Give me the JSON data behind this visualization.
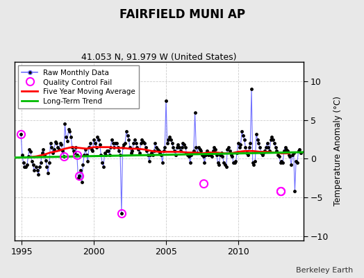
{
  "title": "FAIRFIELD MUNI AP",
  "subtitle": "41.053 N, 91.979 W (United States)",
  "ylabel": "Temperature Anomaly (°C)",
  "attribution": "Berkeley Earth",
  "xlim": [
    1994.5,
    2014.5
  ],
  "ylim": [
    -10.5,
    12.5
  ],
  "yticks": [
    -10,
    -5,
    0,
    5,
    10
  ],
  "xticks": [
    1995,
    2000,
    2005,
    2010
  ],
  "line_color": "#7070ff",
  "dot_color": "#000000",
  "moving_avg_color": "#ff0000",
  "trend_color": "#00bb00",
  "qc_color": "#ff00ff",
  "background_color": "#e8e8e8",
  "plot_bg_color": "#ffffff",
  "raw_times": [
    1994.958,
    1995.042,
    1995.125,
    1995.208,
    1995.292,
    1995.375,
    1995.458,
    1995.542,
    1995.625,
    1995.708,
    1995.792,
    1995.875,
    1996.0,
    1996.083,
    1996.167,
    1996.25,
    1996.333,
    1996.417,
    1996.5,
    1996.583,
    1996.667,
    1996.75,
    1996.833,
    1996.917,
    1997.0,
    1997.083,
    1997.167,
    1997.25,
    1997.333,
    1997.417,
    1997.5,
    1997.583,
    1997.667,
    1997.75,
    1997.833,
    1997.917,
    1998.0,
    1998.083,
    1998.167,
    1998.25,
    1998.333,
    1998.417,
    1998.5,
    1998.583,
    1998.667,
    1998.75,
    1998.833,
    1998.917,
    1999.0,
    1999.083,
    1999.167,
    1999.25,
    1999.333,
    1999.417,
    1999.5,
    1999.583,
    1999.667,
    1999.75,
    1999.833,
    1999.917,
    2000.0,
    2000.083,
    2000.167,
    2000.25,
    2000.333,
    2000.417,
    2000.5,
    2000.583,
    2000.667,
    2000.75,
    2000.833,
    2000.917,
    2001.0,
    2001.083,
    2001.167,
    2001.25,
    2001.333,
    2001.417,
    2001.5,
    2001.583,
    2001.667,
    2001.75,
    2001.833,
    2001.917,
    2002.0,
    2002.083,
    2002.167,
    2002.25,
    2002.333,
    2002.417,
    2002.5,
    2002.583,
    2002.667,
    2002.75,
    2002.833,
    2002.917,
    2003.0,
    2003.083,
    2003.167,
    2003.25,
    2003.333,
    2003.417,
    2003.5,
    2003.583,
    2003.667,
    2003.75,
    2003.833,
    2003.917,
    2004.0,
    2004.083,
    2004.167,
    2004.25,
    2004.333,
    2004.417,
    2004.5,
    2004.583,
    2004.667,
    2004.75,
    2004.833,
    2004.917,
    2005.0,
    2005.083,
    2005.167,
    2005.25,
    2005.333,
    2005.417,
    2005.5,
    2005.583,
    2005.667,
    2005.75,
    2005.833,
    2005.917,
    2006.0,
    2006.083,
    2006.167,
    2006.25,
    2006.333,
    2006.417,
    2006.5,
    2006.583,
    2006.667,
    2006.75,
    2006.833,
    2006.917,
    2007.0,
    2007.083,
    2007.167,
    2007.25,
    2007.333,
    2007.417,
    2007.5,
    2007.583,
    2007.667,
    2007.75,
    2007.833,
    2007.917,
    2008.0,
    2008.083,
    2008.167,
    2008.25,
    2008.333,
    2008.417,
    2008.5,
    2008.583,
    2008.667,
    2008.75,
    2008.833,
    2008.917,
    2009.0,
    2009.083,
    2009.167,
    2009.25,
    2009.333,
    2009.417,
    2009.5,
    2009.583,
    2009.667,
    2009.75,
    2009.833,
    2009.917,
    2010.0,
    2010.083,
    2010.167,
    2010.25,
    2010.333,
    2010.417,
    2010.5,
    2010.583,
    2010.667,
    2010.75,
    2010.833,
    2010.917,
    2011.0,
    2011.083,
    2011.167,
    2011.25,
    2011.333,
    2011.417,
    2011.5,
    2011.583,
    2011.667,
    2011.75,
    2011.833,
    2011.917,
    2012.0,
    2012.083,
    2012.167,
    2012.25,
    2012.333,
    2012.417,
    2012.5,
    2012.583,
    2012.667,
    2012.75,
    2012.833,
    2012.917,
    2013.0,
    2013.083,
    2013.167,
    2013.25,
    2013.333,
    2013.417,
    2013.5,
    2013.583,
    2013.667,
    2013.75,
    2013.833,
    2013.917,
    2014.0,
    2014.083,
    2014.167,
    2014.25,
    2014.333
  ],
  "raw_values": [
    3.2,
    0.5,
    -0.5,
    -1.0,
    -1.0,
    -0.8,
    0.3,
    1.2,
    0.9,
    -0.3,
    -0.8,
    -1.5,
    -1.0,
    -1.5,
    -2.0,
    -1.0,
    -0.5,
    0.8,
    1.2,
    0.5,
    -0.2,
    -1.0,
    -1.8,
    -0.5,
    2.0,
    1.5,
    0.8,
    1.2,
    2.2,
    2.0,
    1.5,
    1.2,
    2.0,
    1.8,
    1.0,
    0.3,
    4.5,
    2.8,
    2.3,
    3.8,
    3.5,
    2.8,
    1.5,
    1.0,
    0.8,
    1.5,
    0.5,
    -2.5,
    -2.2,
    -1.5,
    -3.0,
    -0.8,
    0.5,
    1.2,
    0.5,
    -0.3,
    1.5,
    2.0,
    1.2,
    1.0,
    2.5,
    2.0,
    1.5,
    2.8,
    2.5,
    1.8,
    0.5,
    -0.5,
    -1.0,
    0.8,
    0.5,
    1.0,
    1.0,
    0.5,
    1.5,
    2.5,
    2.0,
    1.5,
    2.0,
    2.0,
    1.5,
    1.0,
    0.5,
    -7.0,
    1.5,
    1.8,
    2.0,
    3.5,
    3.0,
    2.5,
    1.5,
    0.8,
    1.0,
    2.0,
    2.5,
    2.0,
    1.5,
    1.2,
    0.8,
    2.0,
    2.5,
    2.2,
    2.0,
    1.5,
    1.0,
    0.5,
    -0.3,
    0.5,
    0.8,
    0.5,
    1.0,
    2.0,
    1.5,
    1.2,
    1.0,
    0.8,
    0.5,
    -0.5,
    1.0,
    1.5,
    7.5,
    2.0,
    2.5,
    2.8,
    2.5,
    2.0,
    1.5,
    1.0,
    0.5,
    1.5,
    1.8,
    1.5,
    1.0,
    1.5,
    2.0,
    1.8,
    1.5,
    0.8,
    0.5,
    0.3,
    -0.5,
    0.5,
    0.8,
    1.0,
    6.0,
    1.5,
    0.8,
    1.5,
    1.2,
    1.0,
    0.5,
    0.3,
    -0.5,
    0.5,
    1.0,
    0.5,
    0.8,
    0.5,
    0.3,
    1.0,
    1.5,
    1.2,
    0.5,
    -0.5,
    -0.8,
    0.5,
    0.8,
    0.3,
    -0.5,
    -0.8,
    -1.0,
    1.2,
    1.5,
    1.0,
    0.5,
    0.3,
    -0.5,
    -0.5,
    -0.3,
    0.8,
    2.0,
    1.5,
    1.8,
    3.5,
    3.0,
    2.5,
    1.5,
    0.8,
    0.5,
    1.5,
    2.0,
    9.0,
    -0.5,
    -0.8,
    -0.3,
    3.2,
    2.5,
    2.0,
    1.5,
    0.8,
    0.5,
    0.8,
    1.0,
    1.5,
    2.0,
    1.5,
    1.0,
    2.5,
    2.8,
    2.5,
    2.0,
    1.5,
    1.0,
    0.5,
    0.3,
    -0.5,
    -0.3,
    -0.5,
    1.0,
    1.5,
    1.2,
    1.0,
    0.5,
    0.3,
    -0.8,
    0.5,
    0.8,
    -4.2,
    -0.3,
    -0.5,
    1.0,
    1.2,
    0.8
  ],
  "qc_fail_times": [
    1994.958,
    1997.917,
    1998.833,
    1999.0,
    2001.917,
    2007.583,
    2012.917,
    2012.917
  ],
  "qc_fail_values": [
    3.2,
    0.3,
    0.5,
    -2.2,
    -7.0,
    -3.2,
    -4.2,
    -4.2
  ],
  "moving_avg": {
    "times": [
      1995.5,
      1996.0,
      1996.5,
      1997.0,
      1997.5,
      1998.0,
      1998.5,
      1999.0,
      1999.5,
      2000.0,
      2000.5,
      2001.0,
      2001.5,
      2002.0,
      2002.5,
      2003.0,
      2003.5,
      2004.0,
      2004.5,
      2005.0,
      2005.5,
      2006.0,
      2006.5,
      2007.0,
      2007.5,
      2008.0,
      2008.5,
      2009.0,
      2009.5,
      2010.0,
      2010.5,
      2011.0,
      2011.5,
      2012.0,
      2012.5,
      2013.0,
      2013.5
    ],
    "values": [
      0.2,
      0.3,
      0.5,
      0.8,
      1.0,
      1.3,
      1.5,
      1.4,
      1.3,
      1.5,
      1.5,
      1.5,
      1.4,
      1.4,
      1.3,
      1.3,
      1.2,
      1.0,
      0.9,
      0.9,
      0.9,
      0.9,
      0.8,
      0.8,
      0.7,
      0.8,
      0.8,
      0.7,
      0.7,
      0.9,
      1.0,
      1.0,
      0.9,
      0.9,
      0.8,
      0.7,
      0.7
    ]
  },
  "trend": {
    "times": [
      1994.5,
      2014.5
    ],
    "values": [
      0.15,
      0.85
    ]
  }
}
